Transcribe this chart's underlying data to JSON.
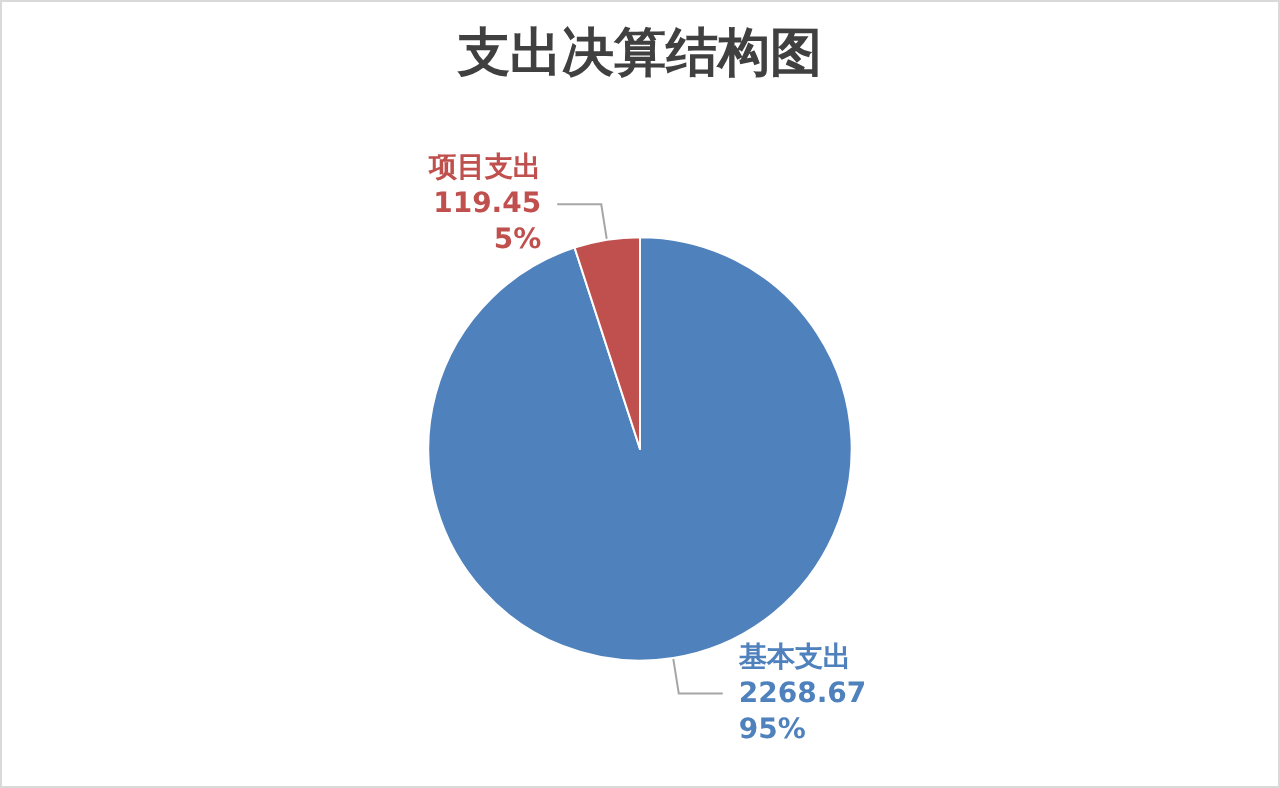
{
  "chart_data": {
    "type": "pie",
    "title": "支出决算结构图",
    "categories": [
      "基本支出",
      "项目支出"
    ],
    "values": [
      2268.67,
      119.45
    ],
    "colors": [
      "#4f81bd",
      "#c0504d"
    ],
    "value_labels": [
      "2268.67\n95%",
      "119.45\n5%"
    ],
    "legend": false
  }
}
